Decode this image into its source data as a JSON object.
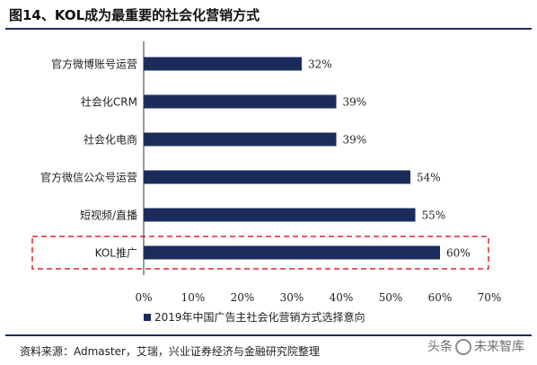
{
  "figure_title": "图14、KOL成为最重要的社会化营销方式",
  "source_text": "资料来源：Admaster，艾瑞，兴业证券经济与金融研究院整理",
  "watermark": {
    "left": "头条",
    "right": "未来智库"
  },
  "colors": {
    "bar": "#1b2c5c",
    "highlight_box": "#d9282f",
    "rule": "#1b2c5c"
  },
  "chart_data": {
    "type": "bar",
    "orientation": "horizontal",
    "categories": [
      "官方微博账号运营",
      "社会化CRM",
      "社会化电商",
      "官方微信公众号运营",
      "短视频/直播",
      "KOL推广"
    ],
    "series": [
      {
        "name": "2019年中国广告主社会化营销方式选择意向",
        "values": [
          32,
          39,
          39,
          54,
          55,
          60
        ]
      }
    ],
    "value_labels": [
      "32%",
      "39%",
      "39%",
      "54%",
      "55%",
      "60%"
    ],
    "xticks": [
      "0%",
      "10%",
      "20%",
      "30%",
      "40%",
      "50%",
      "60%",
      "70%"
    ],
    "xlim": [
      0,
      70
    ],
    "grid": false,
    "legend_position": "bottom",
    "highlighted_category": "KOL推广"
  }
}
